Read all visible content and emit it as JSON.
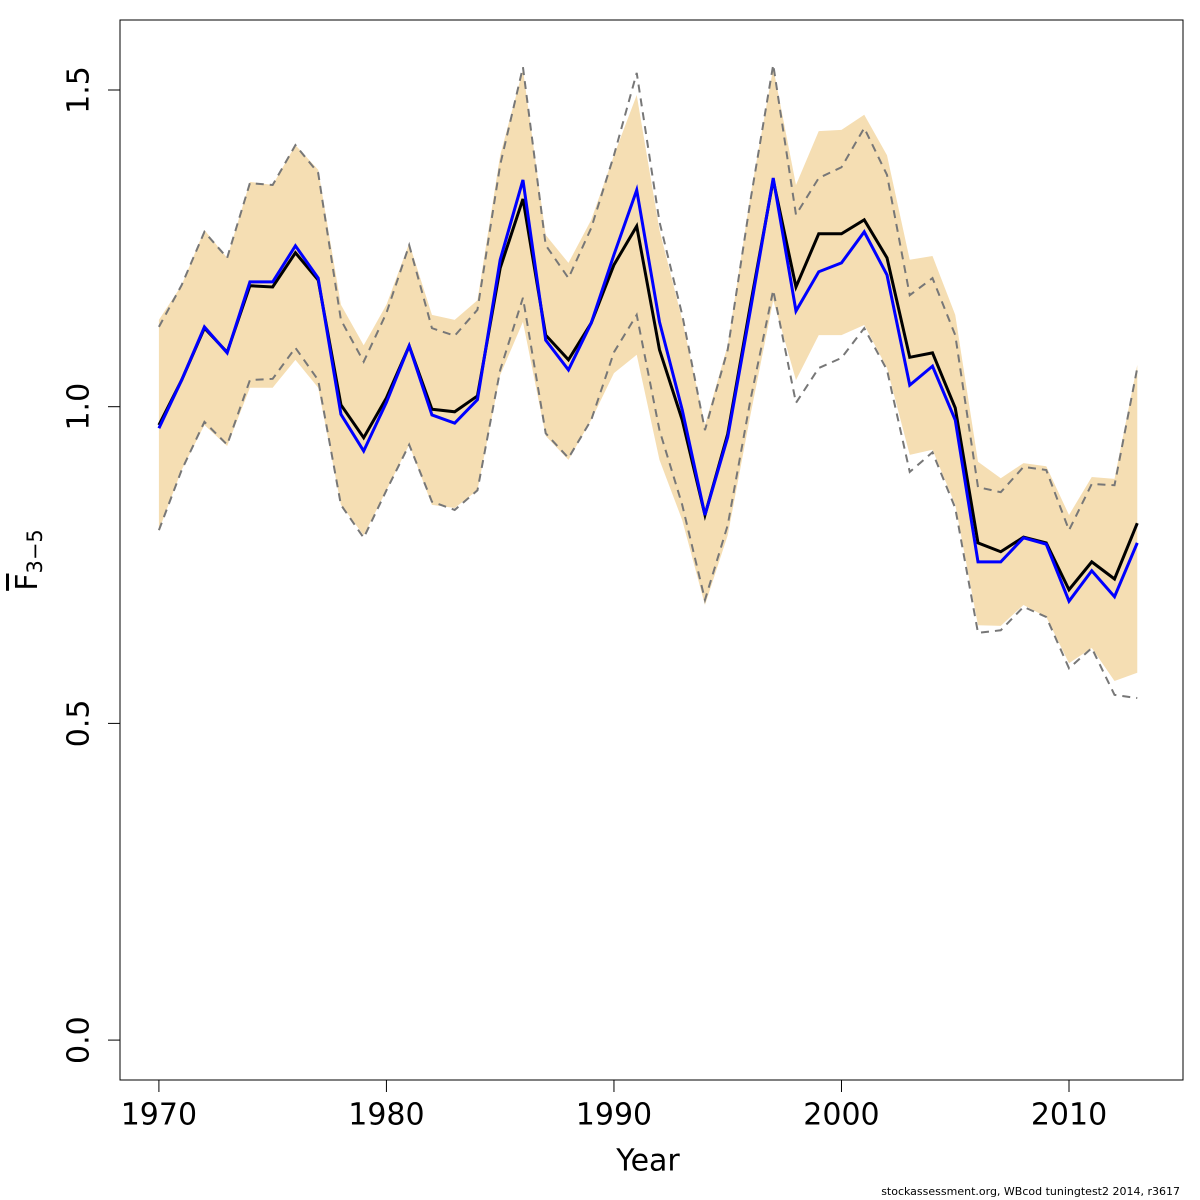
{
  "chart_data": {
    "type": "line",
    "xlabel": "Year",
    "ylabel": "F",
    "ylabel_sub": "3−5",
    "footnote": "stockassessment.org, WBcod tuningtest2 2014, r3617",
    "x": [
      1970,
      1971,
      1972,
      1973,
      1974,
      1975,
      1976,
      1977,
      1978,
      1979,
      1980,
      1981,
      1982,
      1983,
      1984,
      1985,
      1986,
      1987,
      1988,
      1989,
      1990,
      1991,
      1992,
      1993,
      1994,
      1995,
      1996,
      1997,
      1998,
      1999,
      2000,
      2001,
      2002,
      2003,
      2004,
      2005,
      2006,
      2007,
      2008,
      2009,
      2010,
      2011,
      2012,
      2013
    ],
    "xlim": [
      1968.29,
      2015.01
    ],
    "xticks": [
      1970,
      1980,
      1990,
      2000,
      2010
    ],
    "ylim": [
      -0.063,
      1.6105
    ],
    "yticks": [
      {
        "value": 0,
        "label": "0.0"
      },
      0.5,
      {
        "value": 1,
        "label": "1.0"
      },
      1.5
    ],
    "band": {
      "color": "#f5deb3",
      "upper": [
        1.137,
        1.192,
        1.279,
        1.235,
        1.355,
        1.35,
        1.413,
        1.374,
        1.161,
        1.097,
        1.161,
        1.258,
        1.145,
        1.137,
        1.168,
        1.397,
        1.532,
        1.271,
        1.227,
        1.295,
        1.397,
        1.492,
        1.279,
        1.137,
        0.971,
        1.097,
        1.334,
        1.535,
        1.35,
        1.435,
        1.437,
        1.461,
        1.397,
        1.232,
        1.238,
        1.145,
        0.913,
        0.887,
        0.911,
        0.906,
        0.829,
        0.889,
        0.886,
        1.066
      ],
      "lower": [
        0.805,
        0.9,
        0.971,
        0.938,
        1.03,
        1.03,
        1.074,
        1.03,
        0.845,
        0.797,
        0.868,
        0.94,
        0.845,
        0.84,
        0.868,
        1.05,
        1.134,
        0.954,
        0.916,
        0.979,
        1.053,
        1.082,
        0.916,
        0.821,
        0.687,
        0.797,
        0.987,
        1.168,
        1.042,
        1.113,
        1.113,
        1.129,
        1.061,
        0.924,
        0.932,
        0.845,
        0.655,
        0.654,
        0.687,
        0.668,
        0.595,
        0.619,
        0.567,
        0.58
      ]
    },
    "series": [
      {
        "color": "#777777",
        "dash": true,
        "values": [
          1.126,
          1.192,
          1.276,
          1.235,
          1.353,
          1.35,
          1.413,
          1.369,
          1.137,
          1.071,
          1.148,
          1.255,
          1.124,
          1.112,
          1.153,
          1.382,
          1.536,
          1.255,
          1.203,
          1.282,
          1.397,
          1.527,
          1.292,
          1.145,
          0.963,
          1.09,
          1.326,
          1.54,
          1.303,
          1.361,
          1.378,
          1.44,
          1.366,
          1.176,
          1.203,
          1.113,
          0.873,
          0.865,
          0.905,
          0.9,
          0.805,
          0.878,
          0.876,
          1.061
        ]
      },
      {
        "color": "#777777",
        "dash": true,
        "values": [
          0.805,
          0.9,
          0.976,
          0.94,
          1.042,
          1.044,
          1.093,
          1.042,
          0.845,
          0.793,
          0.868,
          0.94,
          0.85,
          0.837,
          0.868,
          1.058,
          1.172,
          0.958,
          0.919,
          0.979,
          1.086,
          1.145,
          0.963,
          0.845,
          0.695,
          0.813,
          1.011,
          1.184,
          1.006,
          1.061,
          1.077,
          1.124,
          1.058,
          0.897,
          0.928,
          0.84,
          0.643,
          0.647,
          0.684,
          0.668,
          0.587,
          0.619,
          0.545,
          0.54
        ]
      },
      {
        "color": "#000000",
        "dash": false,
        "values": [
          0.971,
          1.042,
          1.124,
          1.086,
          1.191,
          1.189,
          1.243,
          1.2,
          1.003,
          0.951,
          1.014,
          1.096,
          0.996,
          0.992,
          1.017,
          1.219,
          1.328,
          1.113,
          1.074,
          1.132,
          1.224,
          1.285,
          1.09,
          0.979,
          0.829,
          0.957,
          1.161,
          1.358,
          1.189,
          1.273,
          1.273,
          1.295,
          1.235,
          1.078,
          1.085,
          0.998,
          0.785,
          0.771,
          0.794,
          0.785,
          0.711,
          0.755,
          0.728,
          0.816
        ]
      },
      {
        "color": "#0000ff",
        "dash": false,
        "values": [
          0.966,
          1.042,
          1.126,
          1.085,
          1.197,
          1.197,
          1.254,
          1.203,
          0.988,
          0.93,
          1.007,
          1.096,
          0.987,
          0.974,
          1.011,
          1.232,
          1.358,
          1.105,
          1.058,
          1.132,
          1.24,
          1.342,
          1.134,
          0.995,
          0.829,
          0.952,
          1.153,
          1.361,
          1.151,
          1.213,
          1.227,
          1.276,
          1.208,
          1.034,
          1.064,
          0.979,
          0.755,
          0.755,
          0.793,
          0.783,
          0.693,
          0.741,
          0.7,
          0.785
        ]
      }
    ]
  }
}
